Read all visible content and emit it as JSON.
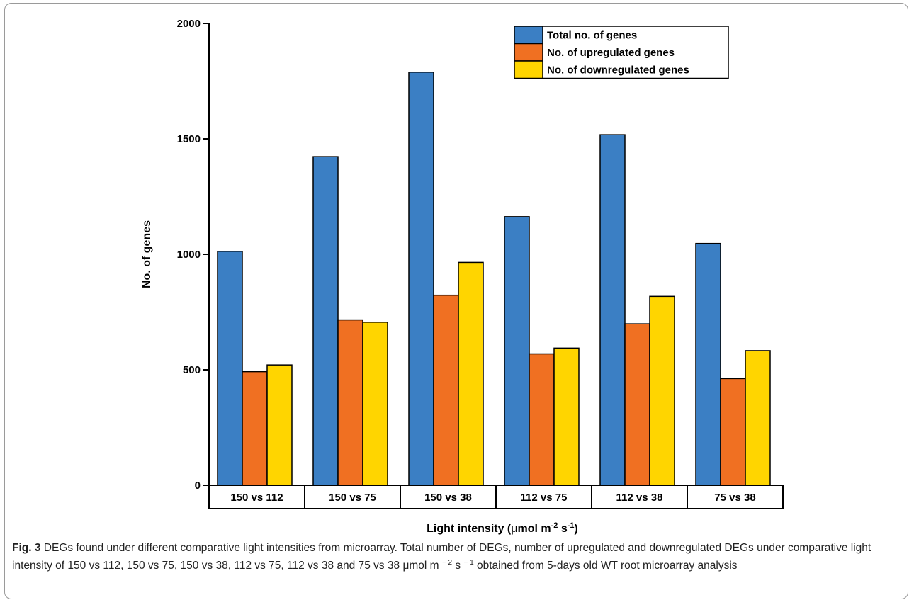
{
  "chart_data": {
    "type": "bar",
    "categories": [
      "150 vs 112",
      "150 vs 75",
      "150 vs 38",
      "112 vs 75",
      "112 vs 38",
      "75 vs 38"
    ],
    "series": [
      {
        "name": "Total no. of genes",
        "color": "#3b7fc4",
        "values": [
          1013,
          1423,
          1789,
          1163,
          1518,
          1047
        ]
      },
      {
        "name": "No. of upregulated genes",
        "color": "#f07022",
        "values": [
          492,
          716,
          823,
          569,
          699,
          462
        ]
      },
      {
        "name": "No. of downregulated genes",
        "color": "#ffd500",
        "values": [
          521,
          706,
          965,
          594,
          818,
          583
        ]
      }
    ],
    "ylabel": "No. of genes",
    "xlabel": {
      "main": "Light intensity (",
      "mu": "μ",
      "unit1": "mol m",
      "sup1": "-2",
      "unit2": " s",
      "sup2": "-1",
      "close": ")"
    },
    "ylim": [
      0,
      2000
    ],
    "yticks": [
      0,
      500,
      1000,
      1500,
      2000
    ],
    "legend_position": "top-right",
    "grid": false
  },
  "caption": {
    "label": "Fig. 3",
    "text": " DEGs found under different comparative light intensities from microarray. Total number of DEGs, number of upregulated and downregulated DEGs under comparative light intensity of 150 vs 112, 150 vs 75, 150 vs 38, 112 vs 75, 112 vs 38 and 75 vs 38 μmol m ",
    "sup1": "− 2",
    "mid": " s ",
    "sup2": "− 1",
    "end": " obtained from 5-days old WT root microarray analysis"
  }
}
